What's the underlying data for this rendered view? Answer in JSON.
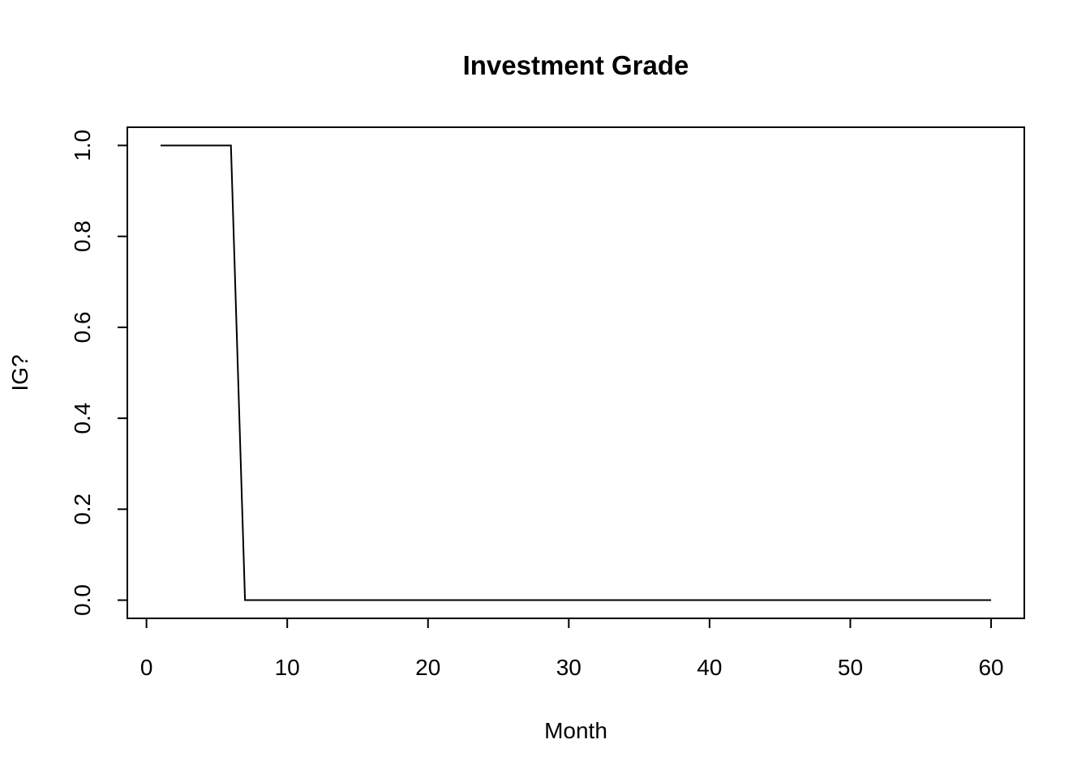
{
  "chart_data": {
    "type": "line",
    "title": "Investment Grade",
    "x_label": "Month",
    "y_label": "IG?",
    "x": [
      1,
      2,
      3,
      4,
      5,
      6,
      7,
      8,
      9,
      10,
      11,
      12,
      13,
      14,
      15,
      16,
      17,
      18,
      19,
      20,
      21,
      22,
      23,
      24,
      25,
      26,
      27,
      28,
      29,
      30,
      31,
      32,
      33,
      34,
      35,
      36,
      37,
      38,
      39,
      40,
      41,
      42,
      43,
      44,
      45,
      46,
      47,
      48,
      49,
      50,
      51,
      52,
      53,
      54,
      55,
      56,
      57,
      58,
      59,
      60
    ],
    "values": [
      1,
      1,
      1,
      1,
      1,
      1,
      0,
      0,
      0,
      0,
      0,
      0,
      0,
      0,
      0,
      0,
      0,
      0,
      0,
      0,
      0,
      0,
      0,
      0,
      0,
      0,
      0,
      0,
      0,
      0,
      0,
      0,
      0,
      0,
      0,
      0,
      0,
      0,
      0,
      0,
      0,
      0,
      0,
      0,
      0,
      0,
      0,
      0,
      0,
      0,
      0,
      0,
      0,
      0,
      0,
      0,
      0,
      0,
      0,
      0
    ],
    "color": "#000000",
    "xlim": [
      -1.36,
      62.36
    ],
    "ylim": [
      -0.04,
      1.04
    ],
    "xticks": [
      0,
      10,
      20,
      30,
      40,
      50,
      60
    ],
    "yticks": [
      {
        "value": 0,
        "label": "0.0"
      },
      0.2,
      0.4,
      0.6,
      0.8,
      {
        "value": 1,
        "label": "1.0"
      }
    ],
    "grid": false
  }
}
